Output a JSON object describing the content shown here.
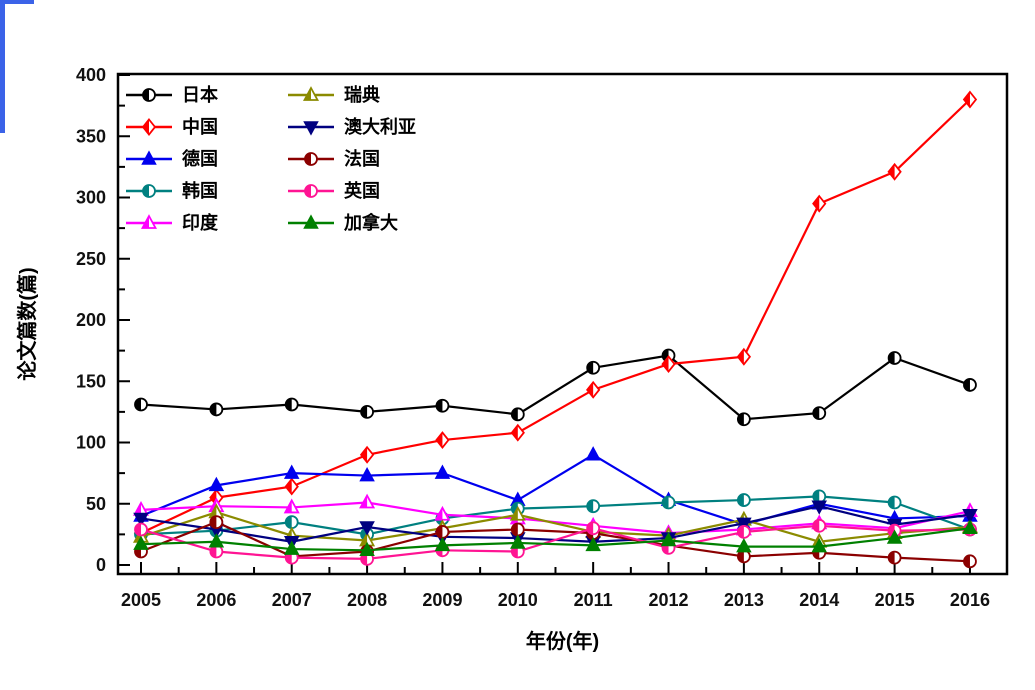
{
  "page": {
    "background": "#ffffff",
    "accent_artifact_color": "#3b63e8"
  },
  "chart_data": {
    "type": "line",
    "title": "",
    "xlabel": "年份(年)",
    "ylabel": "论文篇数(篇)",
    "x": [
      2005,
      2006,
      2007,
      2008,
      2009,
      2010,
      2011,
      2012,
      2013,
      2014,
      2015,
      2016
    ],
    "ylim": [
      0,
      400
    ],
    "ytick_step": 50,
    "ytick_labels": [
      "0",
      "50",
      "100",
      "150",
      "200",
      "250",
      "300",
      "350",
      "400"
    ],
    "xtick_labels": [
      "2005",
      "2006",
      "2007",
      "2008",
      "2009",
      "2010",
      "2011",
      "2012",
      "2013",
      "2014",
      "2015",
      "2016"
    ],
    "grid": false,
    "legend_position": "inside top-left, two columns",
    "legend_columns": [
      [
        "日本",
        "中国",
        "德国",
        "韩国",
        "印度"
      ],
      [
        "瑞典",
        "澳大利亚",
        "法国",
        "英国",
        "加拿大"
      ]
    ],
    "axis_color": "#000000",
    "tick_label_color": "#111111",
    "series": [
      {
        "key": "japan",
        "name": "日本",
        "color": "#000000",
        "marker": "circle-half",
        "values": [
          131,
          127,
          131,
          125,
          130,
          123,
          161,
          171,
          119,
          124,
          169,
          147
        ]
      },
      {
        "key": "china",
        "name": "中国",
        "color": "#ff0000",
        "marker": "diamond-half",
        "values": [
          26,
          55,
          64,
          90,
          102,
          108,
          143,
          164,
          170,
          295,
          321,
          380
        ]
      },
      {
        "key": "germany",
        "name": "德国",
        "color": "#0000ee",
        "marker": "triangle-up",
        "values": [
          40,
          65,
          75,
          73,
          75,
          53,
          90,
          53,
          33,
          50,
          38,
          40
        ]
      },
      {
        "key": "korea",
        "name": "韩国",
        "color": "#008080",
        "marker": "circle-half",
        "values": [
          25,
          28,
          35,
          25,
          38,
          46,
          48,
          51,
          53,
          56,
          51,
          29
        ]
      },
      {
        "key": "india",
        "name": "印度",
        "color": "#ff00ff",
        "marker": "triangle-up-half",
        "values": [
          45,
          48,
          47,
          51,
          41,
          38,
          32,
          26,
          29,
          34,
          30,
          44
        ]
      },
      {
        "key": "sweden",
        "name": "瑞典",
        "color": "#8b8b00",
        "marker": "triangle-up-half",
        "values": [
          23,
          43,
          24,
          20,
          30,
          41,
          27,
          24,
          37,
          19,
          26,
          31
        ]
      },
      {
        "key": "australia",
        "name": "澳大利亚",
        "color": "#000080",
        "marker": "triangle-down",
        "values": [
          38,
          29,
          19,
          31,
          23,
          22,
          19,
          22,
          34,
          48,
          33,
          41
        ]
      },
      {
        "key": "france",
        "name": "法国",
        "color": "#8b0000",
        "marker": "circle-half",
        "values": [
          11,
          35,
          7,
          11,
          27,
          29,
          26,
          16,
          7,
          10,
          6,
          3
        ]
      },
      {
        "key": "uk",
        "name": "英国",
        "color": "#ff1493",
        "marker": "circle-half",
        "values": [
          29,
          11,
          6,
          5,
          12,
          11,
          30,
          14,
          27,
          32,
          28,
          29
        ]
      },
      {
        "key": "canada",
        "name": "加拿大",
        "color": "#008000",
        "marker": "triangle-up",
        "values": [
          17,
          19,
          13,
          12,
          16,
          18,
          16,
          20,
          15,
          15,
          22,
          30
        ]
      }
    ]
  }
}
